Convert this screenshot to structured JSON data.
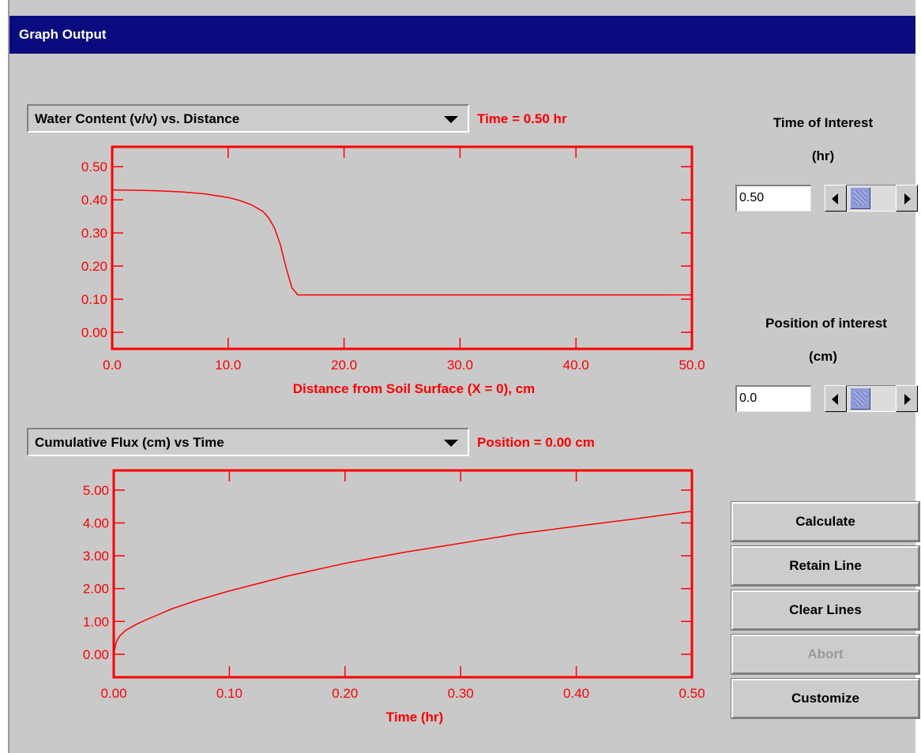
{
  "window": {
    "title": "Graph Output"
  },
  "top_graph": {
    "selector_value": "Water Content (v/v) vs. Distance",
    "status": "Time = 0.50 hr"
  },
  "bottom_graph": {
    "selector_value": "Cumulative Flux (cm) vs Time",
    "status": "Position = 0.00 cm"
  },
  "time_control": {
    "label_line1": "Time of Interest",
    "label_line2": "(hr)",
    "value": "0.50"
  },
  "position_control": {
    "label_line1": "Position of interest",
    "label_line2": "(cm)",
    "value": "0.0"
  },
  "buttons": {
    "calculate": "Calculate",
    "retain_line": "Retain Line",
    "clear_lines": "Clear Lines",
    "abort": "Abort",
    "customize": "Customize"
  },
  "colors": {
    "plot": "#ff0000",
    "titlebar": "#0b0b80",
    "panel": "#c9c9c9"
  },
  "chart_data": [
    {
      "type": "line",
      "xlabel": "Distance from Soil Surface (X = 0), cm",
      "ylabel": "",
      "xlim": [
        0,
        50
      ],
      "ylim": [
        -0.05,
        0.56
      ],
      "x_ticks": [
        0,
        10,
        20,
        30,
        40,
        50
      ],
      "x_tick_labels": [
        "0.0",
        "10.0",
        "20.0",
        "30.0",
        "40.0",
        "50.0"
      ],
      "y_ticks": [
        0,
        0.1,
        0.2,
        0.3,
        0.4,
        0.5
      ],
      "y_tick_labels": [
        "0.00",
        "0.10",
        "0.20",
        "0.30",
        "0.40",
        "0.50"
      ],
      "series": [
        {
          "x": [
            0,
            2,
            4,
            6,
            8,
            10,
            11,
            12,
            13,
            13.5,
            14,
            14.5,
            15,
            15.5,
            16,
            20,
            30,
            40,
            50
          ],
          "y": [
            0.43,
            0.429,
            0.427,
            0.424,
            0.418,
            0.407,
            0.398,
            0.385,
            0.365,
            0.345,
            0.315,
            0.265,
            0.195,
            0.135,
            0.113,
            0.113,
            0.113,
            0.113,
            0.113
          ]
        }
      ]
    },
    {
      "type": "line",
      "xlabel": "Time (hr)",
      "ylabel": "",
      "xlim": [
        0,
        0.5
      ],
      "ylim": [
        -0.7,
        5.6
      ],
      "x_ticks": [
        0,
        0.1,
        0.2,
        0.3,
        0.4,
        0.5
      ],
      "x_tick_labels": [
        "0.00",
        "0.10",
        "0.20",
        "0.30",
        "0.40",
        "0.50"
      ],
      "y_ticks": [
        0,
        1,
        2,
        3,
        4,
        5
      ],
      "y_tick_labels": [
        "0.00",
        "1.00",
        "2.00",
        "3.00",
        "4.00",
        "5.00"
      ],
      "series": [
        {
          "x": [
            0,
            0.002,
            0.005,
            0.01,
            0.02,
            0.03,
            0.05,
            0.07,
            0.1,
            0.15,
            0.2,
            0.25,
            0.3,
            0.35,
            0.4,
            0.45,
            0.5
          ],
          "y": [
            0.0,
            0.35,
            0.55,
            0.72,
            0.92,
            1.08,
            1.38,
            1.62,
            1.93,
            2.38,
            2.77,
            3.1,
            3.38,
            3.67,
            3.9,
            4.12,
            4.36
          ]
        }
      ]
    }
  ]
}
